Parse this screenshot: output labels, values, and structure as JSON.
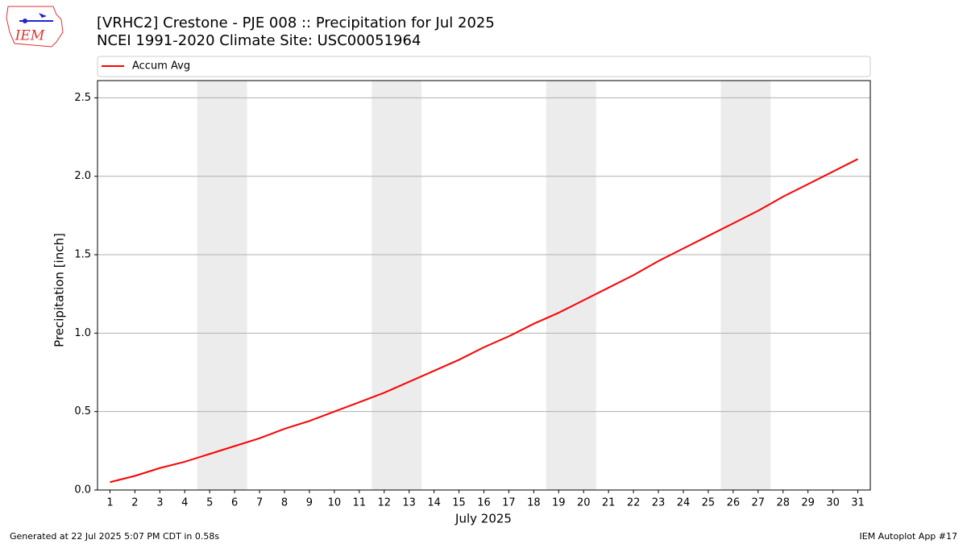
{
  "logo_text": "IEM",
  "footer_left": "Generated at 22 Jul 2025 5:07 PM CDT in 0.58s",
  "footer_right": "IEM Autoplot App #17",
  "chart_data": {
    "type": "line",
    "title": "[VRHC2] Crestone - PJE 008 :: Precipitation for Jul 2025",
    "subtitle": "NCEI 1991-2020 Climate Site: USC00051964",
    "x_label": "July 2025",
    "y_label": "Precipitation [inch]",
    "x": [
      1,
      2,
      3,
      4,
      5,
      6,
      7,
      8,
      9,
      10,
      11,
      12,
      13,
      14,
      15,
      16,
      17,
      18,
      19,
      20,
      21,
      22,
      23,
      24,
      25,
      26,
      27,
      28,
      29,
      30,
      31
    ],
    "series": [
      {
        "name": "Accum Avg",
        "color": "#ff0000",
        "values": [
          0.05,
          0.09,
          0.14,
          0.18,
          0.23,
          0.28,
          0.33,
          0.39,
          0.44,
          0.5,
          0.56,
          0.62,
          0.69,
          0.76,
          0.83,
          0.91,
          0.98,
          1.06,
          1.13,
          1.21,
          1.29,
          1.37,
          1.46,
          1.54,
          1.62,
          1.7,
          1.78,
          1.87,
          1.95,
          2.03,
          2.11
        ]
      }
    ],
    "xlim": [
      0.5,
      31.5
    ],
    "xticks": [
      1,
      2,
      3,
      4,
      5,
      6,
      7,
      8,
      9,
      10,
      11,
      12,
      13,
      14,
      15,
      16,
      17,
      18,
      19,
      20,
      21,
      22,
      23,
      24,
      25,
      26,
      27,
      28,
      29,
      30,
      31
    ],
    "ylim": [
      0,
      2.61
    ],
    "yticks": [
      {
        "value": 0,
        "label": "0.0"
      },
      0.5,
      {
        "value": 1,
        "label": "1.0"
      },
      1.5,
      {
        "value": 2,
        "label": "2.0"
      },
      2.5
    ],
    "weekend_bands": [
      [
        4.5,
        6.5
      ],
      [
        11.5,
        13.5
      ],
      [
        18.5,
        20.5
      ],
      [
        25.5,
        27.5
      ]
    ],
    "band_color": "#ececec",
    "grid": true,
    "legend": "top"
  }
}
